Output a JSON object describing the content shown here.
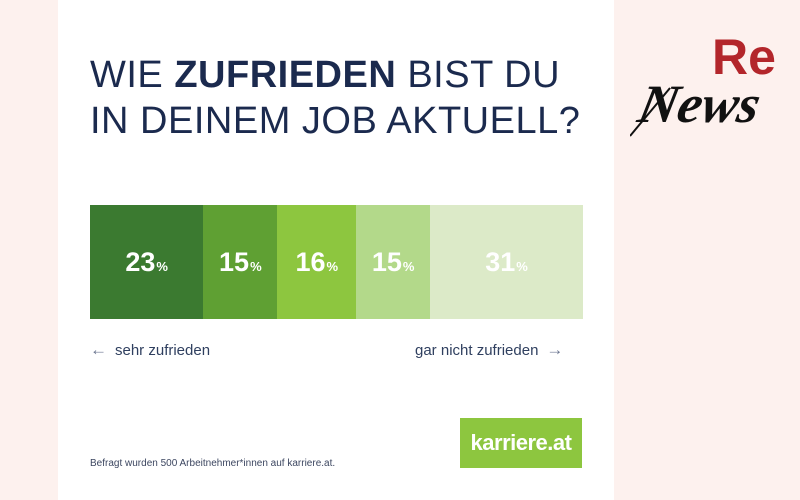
{
  "header": {
    "title_part1": "WIE ",
    "title_bold": "ZUFRIEDEN",
    "title_part2": " BIST DU",
    "title_line2": "IN DEINEM JOB AKTUELL?"
  },
  "chart_data": {
    "type": "bar",
    "orientation": "horizontal-stacked",
    "categories": [
      "sehr zufrieden",
      "",
      "",
      "",
      "gar nicht zufrieden"
    ],
    "values": [
      23,
      15,
      16,
      15,
      31
    ],
    "unit": "%",
    "colors": [
      "#3b7a30",
      "#5fa033",
      "#8dc63f",
      "#b3d98a",
      "#dceac8"
    ],
    "title": "WIE ZUFRIEDEN BIST DU IN DEINEM JOB AKTUELL?"
  },
  "scale": {
    "left_label": "sehr zufrieden",
    "right_label": "gar nicht zufrieden",
    "left_arrow": "←",
    "right_arrow": "→"
  },
  "footnote": "Befragt wurden 500 Arbeitnehmer*innen auf karriere.at.",
  "logo": {
    "text": "karriere.at",
    "color": "#8dc63f"
  },
  "brand": {
    "text_re": "Re",
    "text_news": "News",
    "color_re": "#b3262b"
  }
}
